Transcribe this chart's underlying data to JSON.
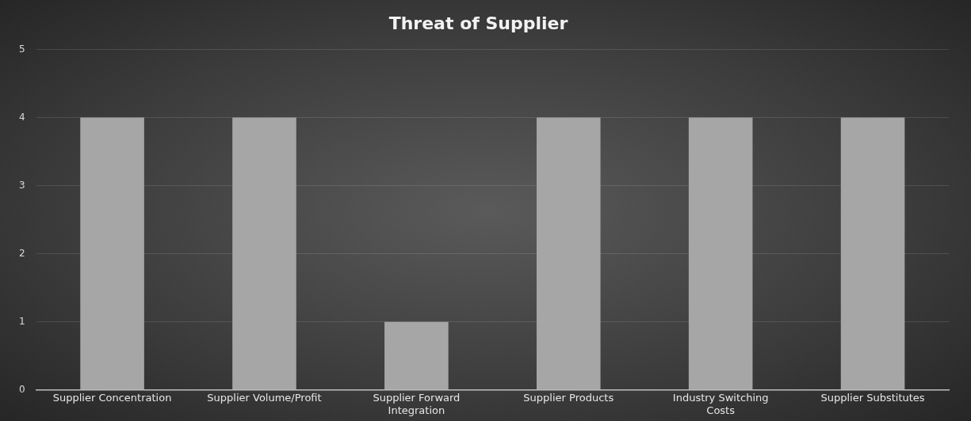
{
  "chart_data": {
    "type": "bar",
    "title": "Threat of Supplier",
    "categories": [
      "Supplier Concentration",
      "Supplier Volume/Profit",
      "Supplier Forward Integration",
      "Supplier Products",
      "Industry Switching Costs",
      "Supplier Substitutes"
    ],
    "values": [
      4,
      4,
      1,
      4,
      4,
      4
    ],
    "color": "#a6a6a6",
    "ylim": [
      0,
      5
    ],
    "yticks": [
      0,
      1,
      2,
      3,
      4,
      5
    ],
    "grid": "y"
  }
}
